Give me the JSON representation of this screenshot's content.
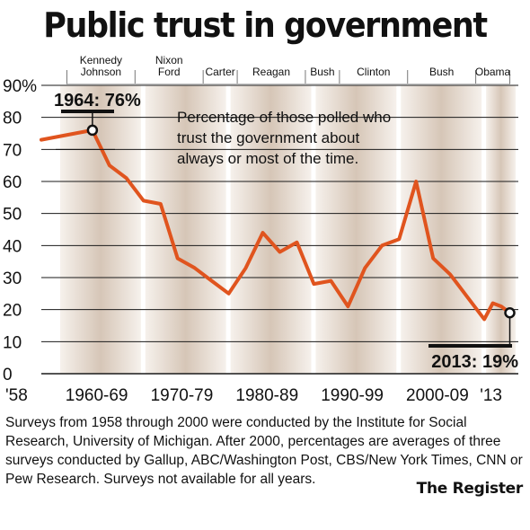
{
  "chart_data": {
    "type": "line",
    "title": "Public trust in government",
    "subtitle": "Percentage of those polled who trust the government about always or most of the time.",
    "y_ticks": [
      "90%",
      "80",
      "70",
      "60",
      "50",
      "40",
      "30",
      "20",
      "10",
      "0"
    ],
    "ylim": [
      0,
      90
    ],
    "grid": true,
    "x_tick_labels": [
      {
        "label": "'58",
        "year": 1958
      },
      {
        "label": "1960-69",
        "year": 1964.5
      },
      {
        "label": "1970-79",
        "year": 1974.5
      },
      {
        "label": "1980-89",
        "year": 1984.5
      },
      {
        "label": "1990-99",
        "year": 1994.5
      },
      {
        "label": "2000-09",
        "year": 2004.5
      },
      {
        "label": "'13",
        "year": 2013
      }
    ],
    "decades_shaded": [
      [
        1960,
        1969
      ],
      [
        1970,
        1979
      ],
      [
        1980,
        1989
      ],
      [
        1990,
        1999
      ],
      [
        2000,
        2009
      ],
      [
        2010,
        2013
      ]
    ],
    "presidents": [
      {
        "name": "Kennedy Johnson",
        "start": 1961,
        "end": 1969
      },
      {
        "name": "Nixon Ford",
        "start": 1969,
        "end": 1977
      },
      {
        "name": "Carter",
        "start": 1977,
        "end": 1981
      },
      {
        "name": "Reagan",
        "start": 1981,
        "end": 1989
      },
      {
        "name": "Bush",
        "start": 1989,
        "end": 1993
      },
      {
        "name": "Clinton",
        "start": 1993,
        "end": 2001
      },
      {
        "name": "Bush",
        "start": 2001,
        "end": 2009
      },
      {
        "name": "Obama",
        "start": 2009,
        "end": 2013
      }
    ],
    "series": [
      {
        "color": "#e0541e",
        "x": [
          1958,
          1964,
          1966,
          1968,
          1970,
          1972,
          1974,
          1976,
          1978,
          1980,
          1982,
          1984,
          1986,
          1988,
          1990,
          1992,
          1994,
          1996,
          1998,
          2000,
          2002,
          2004,
          2006,
          2008,
          2010,
          2011,
          2012,
          2013
        ],
        "values": [
          73,
          76,
          65,
          61,
          54,
          53,
          36,
          33,
          29,
          25,
          33,
          44,
          38,
          41,
          28,
          29,
          21,
          33,
          40,
          42,
          60,
          36,
          31,
          24,
          17,
          22,
          21,
          19
        ]
      }
    ],
    "annotations": [
      {
        "text": "1964: 76%",
        "x": 1964,
        "y": 76
      },
      {
        "text": "2013: 19%",
        "x": 2013,
        "y": 19
      }
    ]
  },
  "footnote": "Surveys from 1958 through 2000 were conducted by the Institute for Social Research, University of Michigan. After 2000, percentages are averages of three surveys conducted by Gallup, ABC/Washington Post, CBS/New York Times, CNN or Pew Research. Surveys not available for all years.",
  "source": "The Register",
  "colors": {
    "line": "#e0541e",
    "shade_dark": "#d9cbbd",
    "shade_light": "#f4efe9",
    "grid": "#1a1a1a"
  }
}
